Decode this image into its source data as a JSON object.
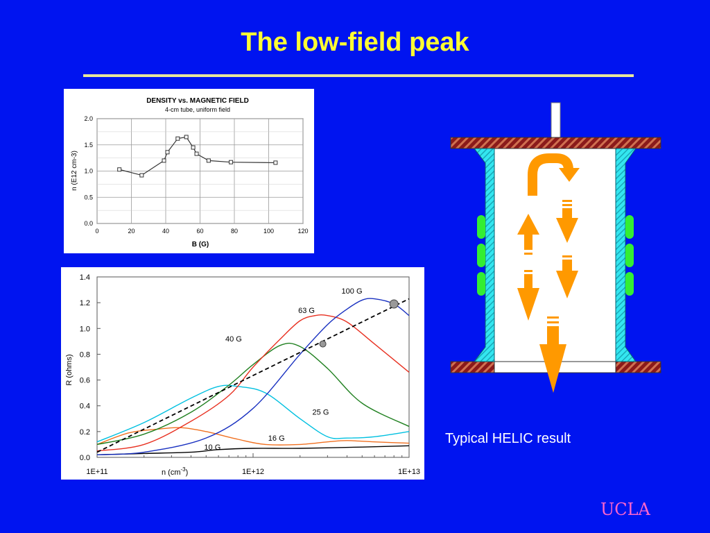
{
  "slide": {
    "title": "The low-field peak",
    "caption": "Typical HELIC result",
    "brand": "UCLA"
  },
  "colors": {
    "background": "#0014f0",
    "title": "#ffff33",
    "brand": "#ff66cc",
    "arrow": "#ff9900"
  },
  "chart_data": [
    {
      "type": "line",
      "title": "DENSITY vs. MAGNETIC FIELD",
      "subtitle": "4-cm tube, uniform field",
      "xlabel": "B (G)",
      "ylabel": "n (E12 cm-3)",
      "xlim": [
        0,
        120
      ],
      "ylim": [
        0,
        2.0
      ],
      "x_ticks": [
        "0",
        "20",
        "40",
        "60",
        "80",
        "100",
        "120"
      ],
      "y_ticks": [
        "0.0",
        "0.5",
        "1.0",
        "1.5",
        "2.0"
      ],
      "grid": true,
      "series": [
        {
          "values": [
            [
              13,
              1.03
            ],
            [
              26,
              0.92
            ],
            [
              39,
              1.2
            ],
            [
              41,
              1.36
            ],
            [
              47,
              1.62
            ],
            [
              52,
              1.65
            ],
            [
              56,
              1.45
            ],
            [
              58,
              1.33
            ],
            [
              65,
              1.2
            ],
            [
              78,
              1.17
            ],
            [
              104,
              1.16
            ]
          ]
        }
      ]
    },
    {
      "type": "line",
      "xlabel": "n (cm-3)",
      "ylabel": "R (ohms)",
      "x_scale": "log",
      "xlim": [
        "1E+11",
        "1E+13"
      ],
      "ylim": [
        0,
        1.4
      ],
      "x_ticks": [
        "1E+11",
        "1E+12",
        "1E+13"
      ],
      "y_ticks": [
        "0.0",
        "0.2",
        "0.4",
        "0.6",
        "0.8",
        "1.0",
        "1.2",
        "1.4"
      ],
      "grid": false,
      "series": [
        {
          "name": "10 G",
          "color": "#000000",
          "values": [
            [
              100000000000.0,
              0.02
            ],
            [
              200000000000.0,
              0.03
            ],
            [
              400000000000.0,
              0.04
            ],
            [
              600000000000.0,
              0.06
            ],
            [
              1000000000000.0,
              0.07
            ],
            [
              2000000000000.0,
              0.07
            ],
            [
              5000000000000.0,
              0.08
            ],
            [
              10000000000000.0,
              0.09
            ]
          ]
        },
        {
          "name": "16 G",
          "color": "#f07020",
          "values": [
            [
              100000000000.0,
              0.1
            ],
            [
              160000000000.0,
              0.19
            ],
            [
              250000000000.0,
              0.22
            ],
            [
              350000000000.0,
              0.23
            ],
            [
              500000000000.0,
              0.2
            ],
            [
              800000000000.0,
              0.14
            ],
            [
              1200000000000.0,
              0.1
            ],
            [
              2000000000000.0,
              0.1
            ],
            [
              3000000000000.0,
              0.12
            ],
            [
              4000000000000.0,
              0.13
            ],
            [
              6000000000000.0,
              0.12
            ],
            [
              10000000000000.0,
              0.11
            ]
          ]
        },
        {
          "name": "25 G",
          "color": "#00c0e0",
          "values": [
            [
              100000000000.0,
              0.12
            ],
            [
              200000000000.0,
              0.27
            ],
            [
              400000000000.0,
              0.46
            ],
            [
              600000000000.0,
              0.55
            ],
            [
              800000000000.0,
              0.55
            ],
            [
              1200000000000.0,
              0.5
            ],
            [
              2000000000000.0,
              0.3
            ],
            [
              3000000000000.0,
              0.16
            ],
            [
              4000000000000.0,
              0.15
            ],
            [
              6000000000000.0,
              0.16
            ],
            [
              10000000000000.0,
              0.2
            ]
          ]
        },
        {
          "name": "40 G",
          "color": "#208020",
          "values": [
            [
              100000000000.0,
              0.1
            ],
            [
              200000000000.0,
              0.18
            ],
            [
              400000000000.0,
              0.35
            ],
            [
              700000000000.0,
              0.56
            ],
            [
              1000000000000.0,
              0.72
            ],
            [
              1500000000000.0,
              0.87
            ],
            [
              2000000000000.0,
              0.86
            ],
            [
              3000000000000.0,
              0.69
            ],
            [
              5000000000000.0,
              0.42
            ],
            [
              10000000000000.0,
              0.24
            ]
          ]
        },
        {
          "name": "63 G",
          "color": "#e83020",
          "values": [
            [
              100000000000.0,
              0.05
            ],
            [
              200000000000.0,
              0.1
            ],
            [
              400000000000.0,
              0.28
            ],
            [
              700000000000.0,
              0.48
            ],
            [
              1000000000000.0,
              0.7
            ],
            [
              1500000000000.0,
              0.92
            ],
            [
              2000000000000.0,
              1.06
            ],
            [
              2500000000000.0,
              1.1
            ],
            [
              3000000000000.0,
              1.1
            ],
            [
              4000000000000.0,
              1.05
            ],
            [
              6000000000000.0,
              0.88
            ],
            [
              10000000000000.0,
              0.66
            ]
          ]
        },
        {
          "name": "100 G",
          "color": "#1830c0",
          "values": [
            [
              100000000000.0,
              0.02
            ],
            [
              200000000000.0,
              0.04
            ],
            [
              500000000000.0,
              0.15
            ],
            [
              1000000000000.0,
              0.38
            ],
            [
              2000000000000.0,
              0.8
            ],
            [
              3000000000000.0,
              1.03
            ],
            [
              4000000000000.0,
              1.15
            ],
            [
              5000000000000.0,
              1.22
            ],
            [
              6000000000000.0,
              1.23
            ],
            [
              8000000000000.0,
              1.19
            ],
            [
              10000000000000.0,
              1.1
            ]
          ]
        },
        {
          "name": "",
          "color": "#000000",
          "dashed": true,
          "values": [
            [
              100000000000.0,
              0.04
            ],
            [
              10000000000000.0,
              1.23
            ]
          ]
        }
      ],
      "markers": [
        [
          2800000000000.0,
          0.88
        ],
        [
          8000000000000.0,
          1.19
        ]
      ]
    }
  ]
}
